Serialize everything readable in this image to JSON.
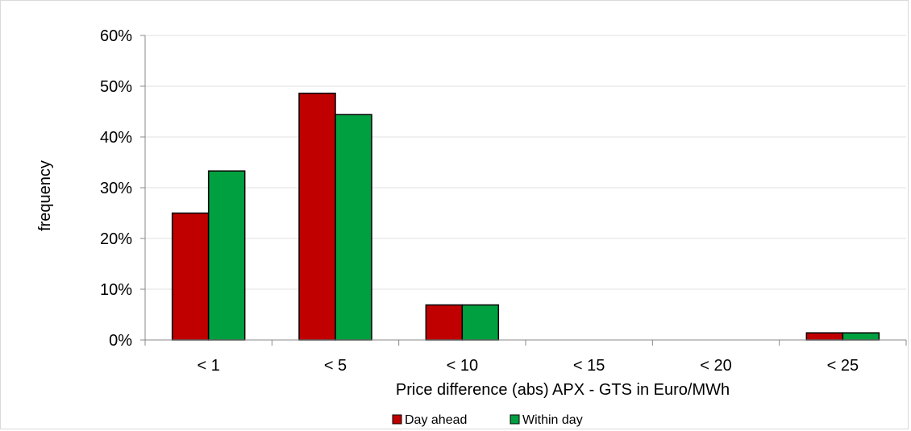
{
  "chart_data": {
    "type": "bar",
    "categories": [
      "< 1",
      "< 5",
      "< 10",
      "< 15",
      "< 20",
      "< 25"
    ],
    "series": [
      {
        "name": "Day ahead",
        "values": [
          0.25,
          0.486,
          0.069,
          0,
          0,
          0.014
        ],
        "color": "#c00000"
      },
      {
        "name": "Within day",
        "values": [
          0.333,
          0.444,
          0.069,
          0,
          0,
          0.014
        ],
        "color": "#00a040"
      }
    ],
    "title": "",
    "xlabel": "Price difference (abs) APX - GTS in Euro/MWh",
    "ylabel": "frequency",
    "ylim": [
      0,
      0.6
    ],
    "yticks": [
      0,
      0.1,
      0.2,
      0.3,
      0.4,
      0.5,
      0.6
    ],
    "ytick_labels": [
      "0%",
      "10%",
      "20%",
      "30%",
      "40%",
      "50%",
      "60%"
    ],
    "grid": true,
    "legend_position": "bottom"
  }
}
